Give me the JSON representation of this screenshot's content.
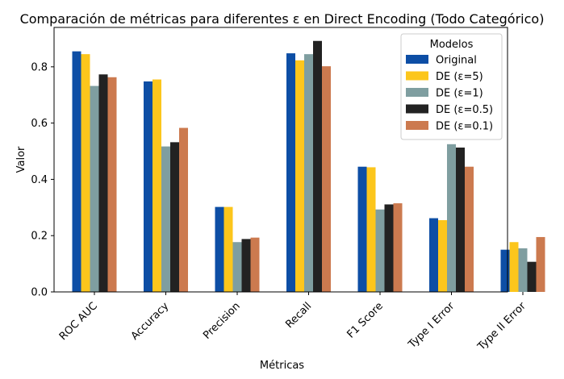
{
  "chart_data": {
    "type": "bar",
    "title": "Comparación de métricas para diferentes ε en Direct Encoding (Todo Categórico)",
    "xlabel": "Métricas",
    "ylabel": "Valor",
    "ylim": [
      0,
      0.94
    ],
    "yticks": [
      0.0,
      0.2,
      0.4,
      0.6,
      0.8
    ],
    "ytick_labels": [
      "0.0",
      "0.2",
      "0.4",
      "0.6",
      "0.8"
    ],
    "grid": false,
    "legend_title": "Modelos",
    "legend_position": "top-right",
    "categories": [
      "ROC AUC",
      "Accuracy",
      "Precision",
      "Recall",
      "F1 Score",
      "Type I Error",
      "Type II Error"
    ],
    "series": [
      {
        "name": "Original",
        "color": "#0d4ea5",
        "values": [
          0.855,
          0.748,
          0.302,
          0.848,
          0.445,
          0.262,
          0.15
        ]
      },
      {
        "name": "DE (ε=5)",
        "color": "#fcc61c",
        "values": [
          0.845,
          0.755,
          0.302,
          0.823,
          0.443,
          0.255,
          0.177
        ]
      },
      {
        "name": "DE (ε=1)",
        "color": "#7f9ea0",
        "values": [
          0.732,
          0.517,
          0.177,
          0.845,
          0.293,
          0.525,
          0.155
        ]
      },
      {
        "name": "DE (ε=0.5)",
        "color": "#222222",
        "values": [
          0.773,
          0.532,
          0.188,
          0.892,
          0.311,
          0.513,
          0.107
        ]
      },
      {
        "name": "DE (ε=0.1)",
        "color": "#cc7a4f",
        "values": [
          0.763,
          0.583,
          0.193,
          0.802,
          0.315,
          0.445,
          0.195
        ]
      }
    ]
  }
}
